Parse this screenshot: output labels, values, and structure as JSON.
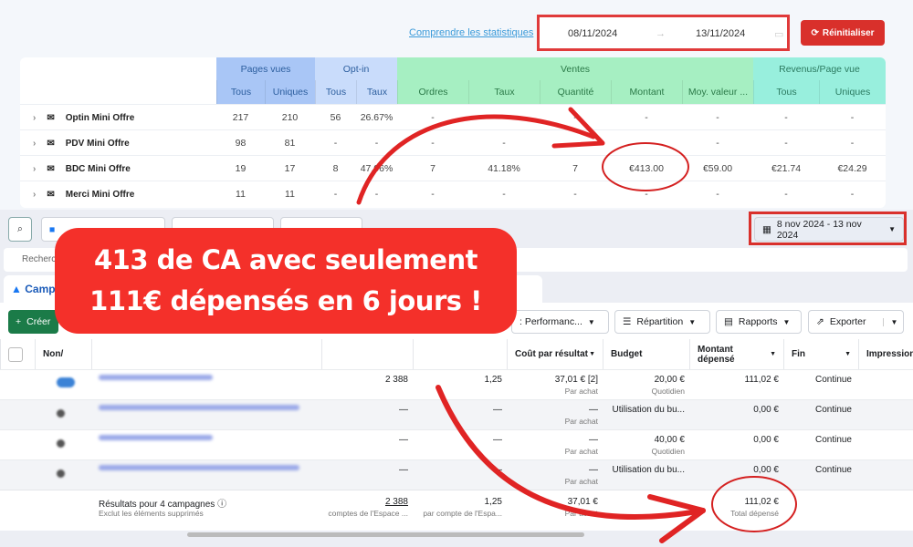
{
  "header": {
    "link": "Comprendre les statistiques",
    "date_start": "08/11/2024",
    "date_end": "13/11/2024",
    "reset_label": "Réinitialiser"
  },
  "stats": {
    "groups": [
      "Pages vues",
      "Opt-in",
      "Ventes",
      "Revenus/Page vue"
    ],
    "columns": [
      "Tous",
      "Uniques",
      "Tous",
      "Taux",
      "Ordres",
      "Taux",
      "Quantité",
      "Montant",
      "Moy. valeur ...",
      "Tous",
      "Uniques"
    ],
    "rows": [
      {
        "name": "Optin Mini Offre",
        "values": [
          "217",
          "210",
          "56",
          "26.67%",
          "-",
          "-",
          "-",
          "-",
          "-",
          "-",
          "-"
        ]
      },
      {
        "name": "PDV Mini Offre",
        "values": [
          "98",
          "81",
          "-",
          "-",
          "-",
          "-",
          "-",
          "-",
          "-",
          "-",
          "-"
        ]
      },
      {
        "name": "BDC Mini Offre",
        "values": [
          "19",
          "17",
          "8",
          "47.06%",
          "7",
          "41.18%",
          "7",
          "€413.00",
          "€59.00",
          "€21.74",
          "€24.29"
        ]
      },
      {
        "name": "Merci Mini Offre",
        "values": [
          "11",
          "11",
          "-",
          "-",
          "-",
          "-",
          "-",
          "-",
          "-",
          "-",
          "-"
        ]
      }
    ]
  },
  "ads": {
    "date_range": "8 nov 2024 - 13 nov 2024",
    "search_placeholder": "Recherch",
    "tab": "Camp",
    "create": "Créer",
    "performance": ": Performanc...",
    "breakdown": "Répartition",
    "reports": "Rapports",
    "export": "Exporter",
    "headers": {
      "onoff": "Non/",
      "cost": "Coût par résultat",
      "budget": "Budget",
      "spent": "Montant dépensé",
      "end": "Fin",
      "impressions": "Impression"
    },
    "rows": [
      {
        "results": "2 388",
        "c2": "1,25",
        "cost": "37,01 € [2]",
        "cost_sub": "Par achat",
        "budget": "20,00 €",
        "budget_sub": "Quotidien",
        "spent": "111,02 €",
        "end": "Continue"
      },
      {
        "results": "—",
        "c2": "—",
        "cost": "—",
        "cost_sub": "Par achat",
        "budget": "Utilisation du bu...",
        "budget_sub": "",
        "spent": "0,00 €",
        "end": "Continue"
      },
      {
        "results": "—",
        "c2": "—",
        "cost": "—",
        "cost_sub": "Par achat",
        "budget": "40,00 €",
        "budget_sub": "Quotidien",
        "spent": "0,00 €",
        "end": "Continue"
      },
      {
        "results": "—",
        "c2": "—",
        "cost": "—",
        "cost_sub": "Par achat",
        "budget": "Utilisation du bu...",
        "budget_sub": "",
        "spent": "0,00 €",
        "end": "Continue"
      }
    ],
    "totals": {
      "label": "Résultats pour 4 campagnes",
      "sub": "Exclut les éléments supprimés",
      "results": "2 388",
      "results_sub": "comptes de l'Espace ...",
      "c2": "1,25",
      "c2_sub": "par compte de l'Espa...",
      "cost": "37,01 €",
      "cost_sub": "Par achat",
      "spent": "111,02 €",
      "spent_sub": "Total dépensé"
    }
  },
  "banner": {
    "line1": "413 de CA avec seulement",
    "line2": "111€ dépensés en 6 jours !"
  },
  "colors": {
    "accent_red": "#f4302a",
    "pages_vues": "#a9c6f6",
    "opt_in": "#c9dcfb",
    "ventes": "#a6efc2",
    "revenus": "#98efdd"
  }
}
